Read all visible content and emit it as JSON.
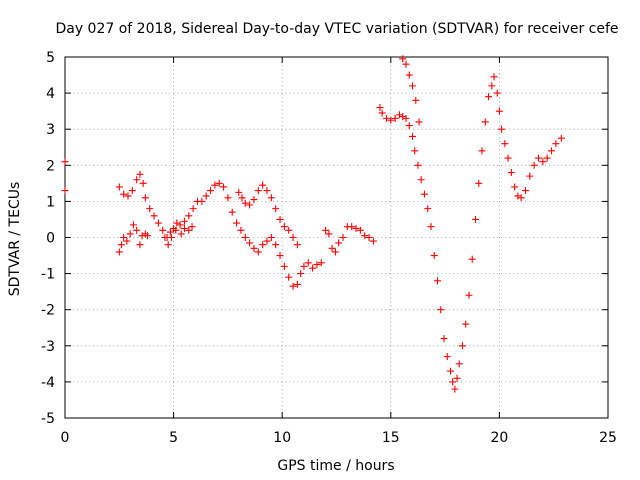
{
  "chart_data": {
    "type": "scatter",
    "title": "Day 027 of 2018, Sidereal Day-to-day VTEC variation (SDTVAR) for receiver cefe",
    "xlabel": "GPS time / hours",
    "ylabel": "SDTVAR / TECUs",
    "xlim": [
      0,
      25
    ],
    "ylim": [
      -5,
      5
    ],
    "xticks": [
      0,
      5,
      10,
      15,
      20,
      25
    ],
    "yticks": [
      -5,
      -4,
      -3,
      -2,
      -1,
      0,
      1,
      2,
      3,
      4,
      5
    ],
    "grid": true,
    "marker": "plus",
    "color": "#ff0000",
    "series": [
      {
        "points": [
          [
            0.0,
            2.1
          ],
          [
            0.0,
            1.3
          ],
          [
            2.5,
            1.4
          ],
          [
            2.7,
            1.2
          ],
          [
            2.9,
            1.15
          ],
          [
            3.1,
            1.3
          ],
          [
            3.3,
            1.6
          ],
          [
            3.45,
            1.75
          ],
          [
            3.6,
            1.5
          ],
          [
            3.7,
            1.1
          ],
          [
            3.9,
            0.8
          ],
          [
            4.1,
            0.6
          ],
          [
            4.3,
            0.4
          ],
          [
            4.5,
            0.2
          ],
          [
            4.6,
            0.0
          ],
          [
            4.75,
            -0.2
          ],
          [
            4.9,
            0.0
          ],
          [
            5.1,
            0.2
          ],
          [
            5.3,
            0.35
          ],
          [
            5.5,
            0.45
          ],
          [
            5.7,
            0.6
          ],
          [
            5.9,
            0.8
          ],
          [
            6.1,
            1.0
          ],
          [
            6.3,
            1.0
          ],
          [
            6.5,
            1.15
          ],
          [
            6.7,
            1.3
          ],
          [
            6.9,
            1.45
          ],
          [
            7.1,
            1.5
          ],
          [
            7.3,
            1.4
          ],
          [
            7.5,
            1.1
          ],
          [
            7.7,
            0.7
          ],
          [
            7.9,
            0.4
          ],
          [
            8.1,
            0.2
          ],
          [
            8.3,
            0.0
          ],
          [
            8.5,
            -0.15
          ],
          [
            8.7,
            -0.3
          ],
          [
            8.9,
            -0.4
          ],
          [
            9.1,
            -0.2
          ],
          [
            9.3,
            -0.1
          ],
          [
            9.5,
            0.0
          ],
          [
            9.7,
            -0.2
          ],
          [
            9.9,
            -0.5
          ],
          [
            10.1,
            -0.8
          ],
          [
            10.3,
            -1.1
          ],
          [
            10.5,
            -1.35
          ],
          [
            10.7,
            -1.3
          ],
          [
            10.85,
            -1.0
          ],
          [
            11.0,
            -0.8
          ],
          [
            11.2,
            -0.7
          ],
          [
            11.4,
            -0.85
          ],
          [
            11.6,
            -0.75
          ],
          [
            11.8,
            -0.7
          ],
          [
            2.5,
            -0.4
          ],
          [
            2.6,
            -0.2
          ],
          [
            2.7,
            0.0
          ],
          [
            2.85,
            -0.1
          ],
          [
            3.0,
            0.1
          ],
          [
            3.15,
            0.35
          ],
          [
            3.3,
            0.2
          ],
          [
            3.45,
            -0.2
          ],
          [
            3.55,
            0.05
          ],
          [
            3.7,
            0.1
          ],
          [
            3.8,
            0.05
          ],
          [
            4.7,
            0.0
          ],
          [
            4.85,
            0.15
          ],
          [
            5.0,
            0.25
          ],
          [
            5.15,
            0.4
          ],
          [
            5.35,
            0.1
          ],
          [
            5.5,
            0.25
          ],
          [
            5.7,
            0.2
          ],
          [
            5.85,
            0.3
          ],
          [
            8.0,
            1.25
          ],
          [
            8.15,
            1.1
          ],
          [
            8.3,
            0.95
          ],
          [
            8.5,
            0.9
          ],
          [
            8.7,
            1.05
          ],
          [
            8.9,
            1.3
          ],
          [
            9.1,
            1.45
          ],
          [
            9.3,
            1.3
          ],
          [
            9.5,
            1.1
          ],
          [
            9.7,
            0.8
          ],
          [
            9.9,
            0.5
          ],
          [
            10.1,
            0.3
          ],
          [
            10.3,
            0.2
          ],
          [
            10.5,
            0.0
          ],
          [
            10.7,
            -0.2
          ],
          [
            12.0,
            0.2
          ],
          [
            12.15,
            0.1
          ],
          [
            12.3,
            -0.3
          ],
          [
            12.45,
            -0.4
          ],
          [
            12.6,
            -0.15
          ],
          [
            12.8,
            0.0
          ],
          [
            13.0,
            0.3
          ],
          [
            13.2,
            0.3
          ],
          [
            13.4,
            0.25
          ],
          [
            13.6,
            0.2
          ],
          [
            13.8,
            0.05
          ],
          [
            14.0,
            0.0
          ],
          [
            14.2,
            -0.1
          ],
          [
            14.5,
            3.6
          ],
          [
            14.6,
            3.45
          ],
          [
            14.8,
            3.3
          ],
          [
            15.0,
            3.25
          ],
          [
            15.2,
            3.3
          ],
          [
            15.4,
            3.4
          ],
          [
            15.55,
            3.35
          ],
          [
            15.7,
            3.3
          ],
          [
            15.85,
            3.1
          ],
          [
            16.0,
            2.8
          ],
          [
            16.1,
            2.4
          ],
          [
            16.25,
            2.0
          ],
          [
            16.4,
            1.6
          ],
          [
            16.55,
            1.2
          ],
          [
            16.7,
            0.8
          ],
          [
            16.85,
            0.3
          ],
          [
            17.0,
            -0.5
          ],
          [
            17.15,
            -1.2
          ],
          [
            17.3,
            -2.0
          ],
          [
            17.45,
            -2.8
          ],
          [
            17.6,
            -3.3
          ],
          [
            17.75,
            -3.7
          ],
          [
            17.85,
            -4.0
          ],
          [
            17.95,
            -4.2
          ],
          [
            18.05,
            -3.9
          ],
          [
            18.15,
            -3.5
          ],
          [
            18.3,
            -3.0
          ],
          [
            18.45,
            -2.4
          ],
          [
            18.6,
            -1.6
          ],
          [
            18.75,
            -0.6
          ],
          [
            18.9,
            0.5
          ],
          [
            19.05,
            1.5
          ],
          [
            19.2,
            2.4
          ],
          [
            19.35,
            3.2
          ],
          [
            19.5,
            3.9
          ],
          [
            19.65,
            4.2
          ],
          [
            19.75,
            4.45
          ],
          [
            19.9,
            4.0
          ],
          [
            20.0,
            3.5
          ],
          [
            20.1,
            3.0
          ],
          [
            20.25,
            2.6
          ],
          [
            20.4,
            2.2
          ],
          [
            20.55,
            1.8
          ],
          [
            20.7,
            1.4
          ],
          [
            20.85,
            1.15
          ],
          [
            21.0,
            1.1
          ],
          [
            21.2,
            1.3
          ],
          [
            21.4,
            1.7
          ],
          [
            21.6,
            2.0
          ],
          [
            21.8,
            2.2
          ],
          [
            22.0,
            2.1
          ],
          [
            22.2,
            2.2
          ],
          [
            22.4,
            2.4
          ],
          [
            22.6,
            2.6
          ],
          [
            22.85,
            2.75
          ],
          [
            15.55,
            4.95
          ],
          [
            15.7,
            4.8
          ],
          [
            15.85,
            4.5
          ],
          [
            16.0,
            4.2
          ],
          [
            16.15,
            3.8
          ],
          [
            16.3,
            3.2
          ]
        ]
      }
    ]
  }
}
